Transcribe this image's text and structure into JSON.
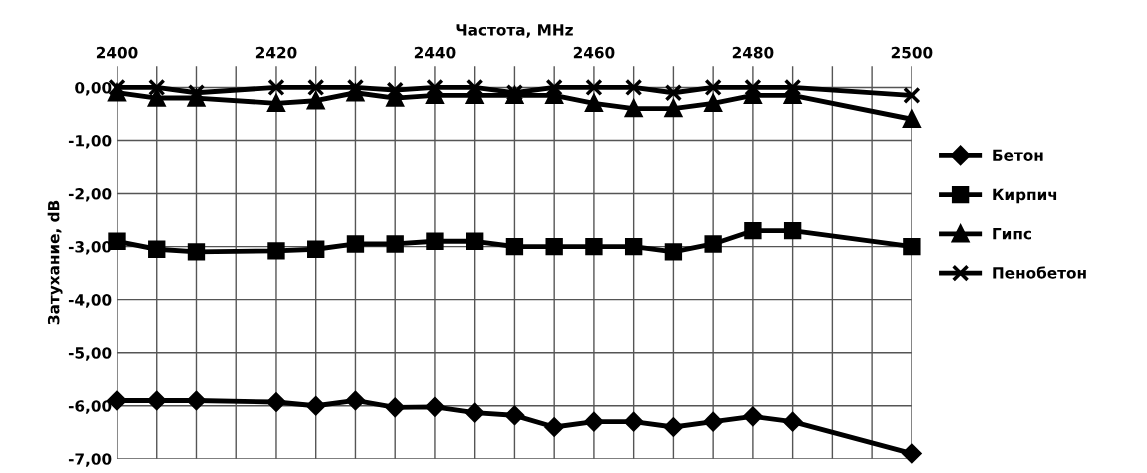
{
  "chart_data": {
    "type": "line",
    "xlabel": "Частота, MHz",
    "ylabel": "Затухание, dB",
    "x": [
      2400,
      2405,
      2410,
      2420,
      2425,
      2430,
      2435,
      2440,
      2445,
      2450,
      2455,
      2460,
      2465,
      2470,
      2475,
      2480,
      2485,
      2500
    ],
    "series": [
      {
        "name": "Бетон",
        "color": "#000000",
        "marker": "diamond",
        "values": [
          -5.9,
          -5.9,
          -5.9,
          -5.93,
          -6.0,
          -5.9,
          -6.03,
          -6.02,
          -6.13,
          -6.18,
          -6.4,
          -6.3,
          -6.3,
          -6.4,
          -6.3,
          -6.2,
          -6.3,
          -6.9
        ]
      },
      {
        "name": "Кирпич",
        "color": "#000000",
        "marker": "square",
        "values": [
          -2.9,
          -3.05,
          -3.1,
          -3.08,
          -3.05,
          -2.95,
          -2.95,
          -2.9,
          -2.9,
          -3.0,
          -3.0,
          -3.0,
          -3.0,
          -3.1,
          -2.95,
          -2.7,
          -2.7,
          -3.0
        ]
      },
      {
        "name": "Гипс",
        "color": "#000000",
        "marker": "triangle",
        "values": [
          -0.1,
          -0.2,
          -0.2,
          -0.3,
          -0.25,
          -0.1,
          -0.2,
          -0.15,
          -0.15,
          -0.15,
          -0.15,
          -0.3,
          -0.4,
          -0.4,
          -0.3,
          -0.15,
          -0.15,
          -0.6
        ]
      },
      {
        "name": "Пенобетон",
        "color": "#000000",
        "marker": "cross",
        "values": [
          0,
          0,
          -0.1,
          0,
          0,
          0,
          -0.05,
          0,
          0,
          -0.1,
          0,
          0,
          0,
          -0.1,
          0,
          0,
          0,
          -0.15
        ]
      }
    ],
    "xlim": [
      2400,
      2500
    ],
    "xticks": [
      2400,
      {
        "value": 2405,
        "label": null
      },
      {
        "value": 2410,
        "label": null
      },
      {
        "value": 2415,
        "label": null
      },
      2420,
      {
        "value": 2425,
        "label": null
      },
      {
        "value": 2430,
        "label": null
      },
      {
        "value": 2435,
        "label": null
      },
      2440,
      {
        "value": 2445,
        "label": null
      },
      {
        "value": 2450,
        "label": null
      },
      {
        "value": 2455,
        "label": null
      },
      2460,
      {
        "value": 2465,
        "label": null
      },
      {
        "value": 2470,
        "label": null
      },
      {
        "value": 2475,
        "label": null
      },
      2480,
      {
        "value": 2485,
        "label": null
      },
      {
        "value": 2490,
        "label": null
      },
      {
        "value": 2495,
        "label": null
      },
      2500
    ],
    "ylim": [
      -7,
      0.4
    ],
    "yticks": [
      {
        "value": 0,
        "label": "0,00"
      },
      {
        "value": -1,
        "label": "-1,00"
      },
      {
        "value": -2,
        "label": "-2,00"
      },
      {
        "value": -3,
        "label": "-3,00"
      },
      {
        "value": -4,
        "label": "-4,00"
      },
      {
        "value": -5,
        "label": "-5,00"
      },
      {
        "value": -6,
        "label": "-6,00"
      },
      {
        "value": -7,
        "label": "-7,00"
      }
    ],
    "grid": true,
    "legend": "right",
    "line_style": "solid"
  }
}
